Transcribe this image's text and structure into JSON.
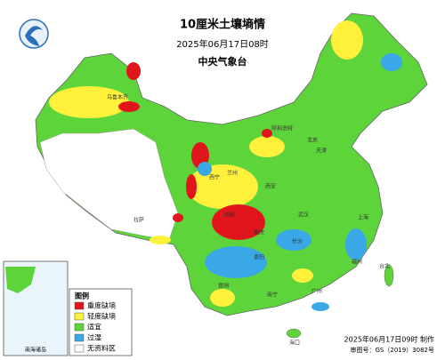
{
  "header": {
    "title": "10厘米土壤墒情",
    "subtitle": "2025年06月17日08时",
    "issuer": "中央气象台"
  },
  "legend": {
    "title": "图例",
    "items": [
      {
        "label": "重度缺墒",
        "color": "#e0161c"
      },
      {
        "label": "轻度缺墒",
        "color": "#fff03c"
      },
      {
        "label": "适宜",
        "color": "#5dd43a"
      },
      {
        "label": "过湿",
        "color": "#3aa8e6"
      },
      {
        "label": "无资料区",
        "color": "#ffffff"
      }
    ]
  },
  "footer": {
    "made": "2025年06月17日09时 制作",
    "approval": "审图号：GS（2019）3082号"
  },
  "inset": {
    "label": "南海诸岛"
  },
  "places": [
    "北京",
    "天津",
    "呼和浩特",
    "西安",
    "兰州",
    "成都",
    "重庆",
    "武汉",
    "上海",
    "长沙",
    "贵阳",
    "昆明",
    "南宁",
    "广州",
    "福州",
    "台北",
    "海口",
    "乌鲁木齐",
    "拉萨",
    "西宁"
  ]
}
